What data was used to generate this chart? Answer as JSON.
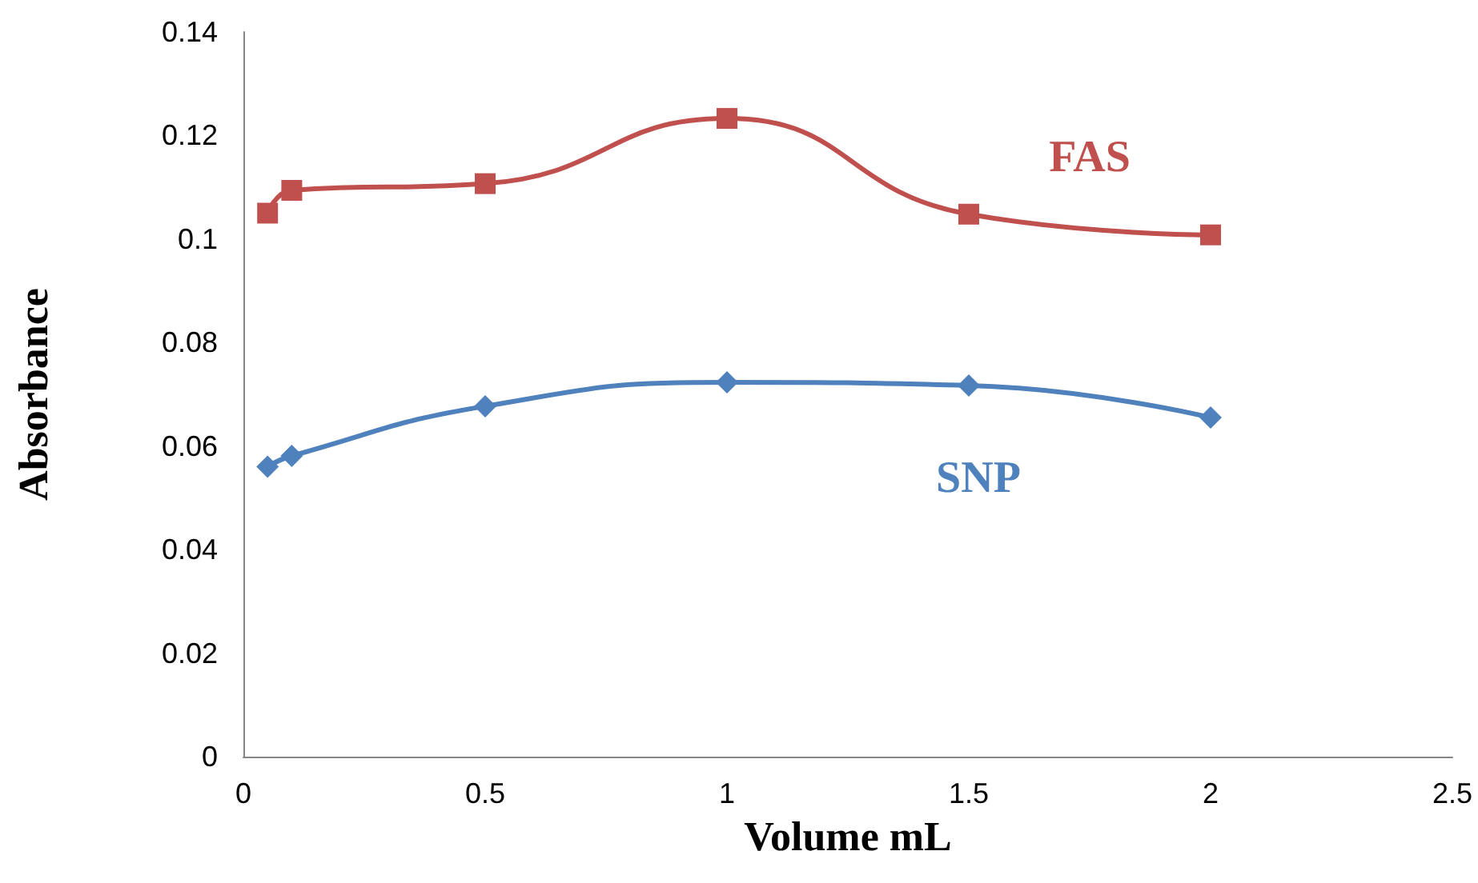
{
  "chart_data": {
    "type": "line",
    "xlabel": "Volume mL",
    "ylabel": "Absorbance",
    "xlim": [
      0,
      2.5
    ],
    "xticks": [
      0,
      0.5,
      1,
      1.5,
      2,
      2.5
    ],
    "ylim": [
      0,
      0.14
    ],
    "yticks": [
      0,
      0.02,
      0.04,
      0.06,
      0.08,
      0.1,
      0.12,
      0.14
    ],
    "grid": false,
    "legend": false,
    "x": [
      0.05,
      0.1,
      0.5,
      1,
      1.5,
      2
    ],
    "series": [
      {
        "name": "FAS",
        "color": "#c0504d",
        "marker": "square",
        "values": [
          0.105,
          0.1094,
          0.1107,
          0.1233,
          0.1048,
          0.1008
        ]
      },
      {
        "name": "SNP",
        "color": "#4f81bd",
        "marker": "diamond",
        "values": [
          0.056,
          0.0581,
          0.0677,
          0.0723,
          0.0717,
          0.0655
        ]
      }
    ]
  }
}
